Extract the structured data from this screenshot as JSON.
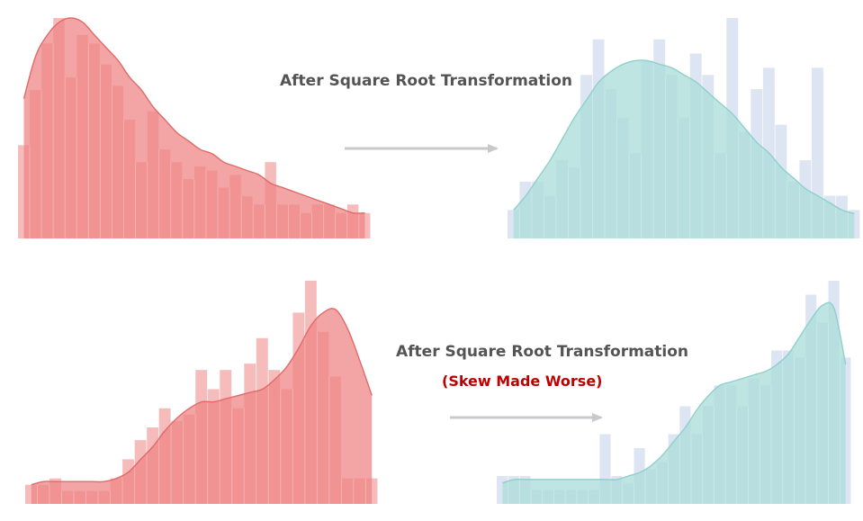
{
  "captions": {
    "top": "After Square Root Transformation",
    "bottom": "After Square Root Transformation",
    "bottom_note": "(Skew Made Worse)"
  },
  "colors": {
    "original_bar": "#f6bcbc",
    "original_fill": "#ef8585",
    "original_curve": "#e06a6a",
    "transformed_bar": "#dde5f2",
    "transformed_fill": "#a9dcda",
    "transformed_curve": "#8fcfcc",
    "arrow": "#c8c8cc",
    "note": "#c00000"
  },
  "chart_data": [
    {
      "type": "bar",
      "subtype": "histogram-with-density",
      "values": [
        22,
        35,
        46,
        52,
        38,
        48,
        46,
        41,
        36,
        28,
        18,
        30,
        21,
        18,
        14,
        17,
        16,
        12,
        15,
        10,
        8,
        18,
        8,
        8,
        6,
        8,
        8,
        6,
        8,
        6
      ],
      "density": [
        33,
        43,
        48,
        51,
        52,
        51,
        48,
        45,
        42,
        38,
        35,
        31,
        28,
        25,
        23,
        21,
        20,
        18,
        17,
        16,
        15,
        13,
        12,
        11,
        10,
        9,
        8,
        7,
        6,
        6
      ]
    },
    {
      "type": "bar",
      "subtype": "histogram-with-density",
      "values": [
        8,
        16,
        16,
        12,
        22,
        20,
        46,
        56,
        42,
        34,
        24,
        50,
        56,
        46,
        34,
        52,
        46,
        24,
        62,
        30,
        42,
        48,
        32,
        16,
        22,
        48,
        12,
        12,
        8
      ],
      "density": [
        8,
        12,
        17,
        22,
        28,
        34,
        39,
        44,
        47,
        49,
        50,
        50,
        49,
        48,
        46,
        44,
        41,
        38,
        35,
        31,
        27,
        24,
        20,
        17,
        14,
        12,
        10,
        8,
        7
      ]
    },
    {
      "type": "bar",
      "subtype": "histogram-with-density",
      "values": [
        6,
        6,
        8,
        4,
        4,
        4,
        4,
        8,
        14,
        20,
        24,
        30,
        26,
        28,
        42,
        36,
        42,
        30,
        44,
        52,
        42,
        36,
        60,
        70,
        54,
        40,
        8,
        8,
        8
      ],
      "density": [
        6,
        7,
        7,
        7,
        7,
        7,
        7,
        8,
        10,
        14,
        18,
        23,
        27,
        30,
        32,
        32,
        33,
        34,
        35,
        36,
        39,
        43,
        49,
        56,
        60,
        61,
        55,
        45,
        34
      ]
    },
    {
      "type": "bar",
      "subtype": "histogram-with-density",
      "values": [
        8,
        8,
        8,
        4,
        4,
        4,
        4,
        4,
        4,
        20,
        8,
        6,
        16,
        10,
        12,
        20,
        28,
        20,
        28,
        34,
        34,
        28,
        36,
        34,
        44,
        44,
        42,
        60,
        52,
        64,
        42
      ],
      "density": [
        6,
        7,
        7,
        7,
        7,
        7,
        7,
        7,
        7,
        7,
        7,
        8,
        9,
        11,
        14,
        18,
        22,
        27,
        31,
        34,
        35,
        36,
        37,
        38,
        40,
        43,
        48,
        53,
        57,
        56,
        40
      ]
    }
  ]
}
